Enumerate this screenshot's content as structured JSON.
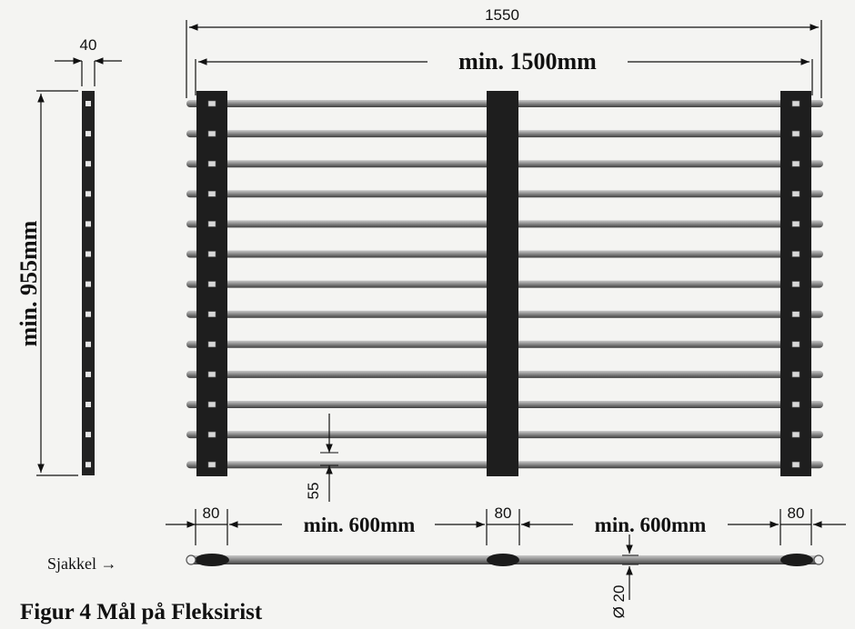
{
  "figure": {
    "caption": "Figur  4  Mål på Fleksirist",
    "overall_width": "1550",
    "min_width": "min. 1500mm",
    "min_height": "min. 955mm",
    "side_width": "40",
    "bar_spacing": "55",
    "beam_width_left": "80",
    "beam_width_mid": "80",
    "beam_width_right": "80",
    "span_left": "min. 600mm",
    "span_right": "min. 600mm",
    "bar_diameter": "Ø 20",
    "shackle_label": "Sjakkel →"
  }
}
